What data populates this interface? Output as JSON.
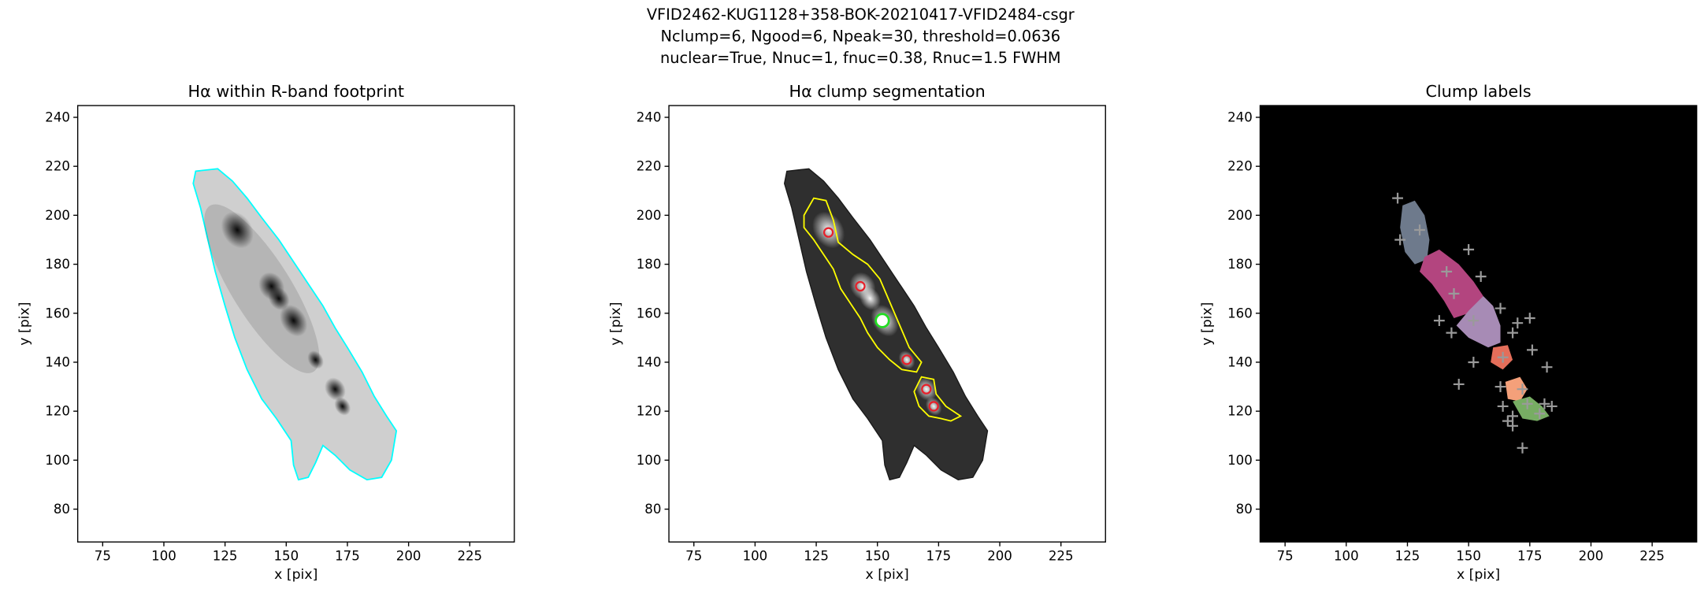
{
  "suptitle": [
    "VFID2462-KUG1128+358-BOK-20210417-VFID2484-csgr",
    "Nclump=6, Ngood=6, Npeak=30, threshold=0.0636",
    "nuclear=True, Nnuc=1, fnuc=0.38, Rnuc=1.5 FWHM"
  ],
  "chart_data": [
    {
      "type": "image",
      "title": "Hα within R-band footprint",
      "xlabel": "x [pix]",
      "ylabel": "y [pix]",
      "xlim": [
        64.8,
        243.2
      ],
      "ylim": [
        66.6,
        244.8
      ],
      "xticks": [
        75,
        100,
        125,
        150,
        175,
        200,
        225
      ],
      "yticks": [
        80,
        100,
        120,
        140,
        160,
        180,
        200,
        220,
        240
      ],
      "contour_color": "#00ffff"
    },
    {
      "type": "image",
      "title": "Hα clump segmentation",
      "xlabel": "x [pix]",
      "ylabel": "y [pix]",
      "xlim": [
        64.8,
        243.2
      ],
      "ylim": [
        66.6,
        244.8
      ],
      "xticks": [
        75,
        100,
        125,
        150,
        175,
        200,
        225
      ],
      "yticks": [
        80,
        100,
        120,
        140,
        160,
        180,
        200,
        220,
        240
      ],
      "contour_color": "#ffff00",
      "peaks": {
        "color": "#e8202a",
        "x": [
          130,
          143,
          162,
          170,
          173
        ],
        "y": [
          193,
          171,
          141,
          129,
          122
        ]
      },
      "nucleus": {
        "color": "#22dd22",
        "x": [
          152
        ],
        "y": [
          157
        ]
      }
    },
    {
      "type": "image",
      "title": "Clump labels",
      "xlabel": "x [pix]",
      "ylabel": "y [pix]",
      "xlim": [
        64.8,
        243.2
      ],
      "ylim": [
        66.6,
        244.8
      ],
      "xticks": [
        75,
        100,
        125,
        150,
        175,
        200,
        225
      ],
      "yticks": [
        80,
        100,
        120,
        140,
        160,
        180,
        200,
        220,
        240
      ],
      "markers": {
        "color": "#9a9a9a",
        "x": [
          121,
          122,
          130,
          141,
          144,
          150,
          155,
          152,
          138,
          143,
          163,
          170,
          175,
          168,
          164,
          176,
          182,
          152,
          146,
          163,
          172,
          164,
          174,
          168,
          181,
          184,
          179,
          166,
          168,
          172
        ],
        "y": [
          207,
          190,
          194,
          177,
          168,
          186,
          175,
          157,
          157,
          152,
          162,
          156,
          158,
          152,
          142,
          145,
          138,
          140,
          131,
          130,
          129,
          122,
          123,
          118,
          123,
          122,
          119,
          116,
          114,
          105
        ]
      }
    }
  ]
}
